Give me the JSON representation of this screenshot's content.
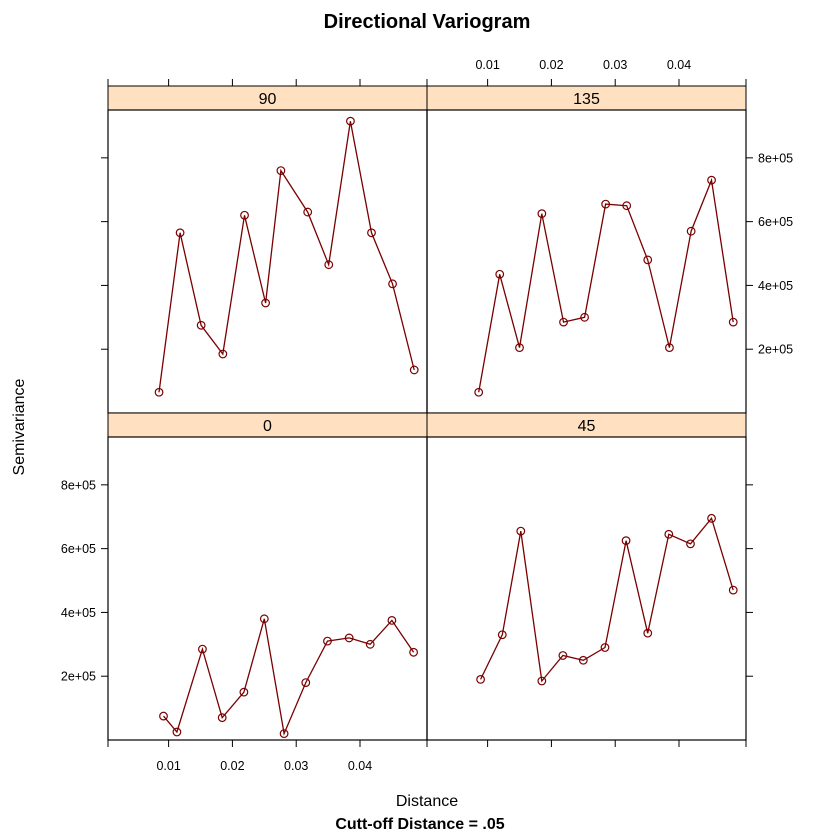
{
  "chart_data": {
    "type": "scatter",
    "title": "Directional Variogram",
    "xlabel": "Distance",
    "ylabel": "Semivariance",
    "sub": "Cutt-off Distance = .05",
    "xlim": [
      0.0005,
      0.0505
    ],
    "ylim": [
      0,
      950000
    ],
    "x_ticks": [
      0.01,
      0.02,
      0.03,
      0.04
    ],
    "x_tick_labels": [
      "0.01",
      "0.02",
      "0.03",
      "0.04"
    ],
    "y_ticks": [
      200000,
      400000,
      600000,
      800000
    ],
    "y_tick_labels": [
      "2e+05",
      "4e+05",
      "6e+05",
      "8e+05"
    ],
    "line_color": "#7a0000",
    "strip_color": "#ffe0c0",
    "panels": [
      {
        "name": "90",
        "x": [
          0.0085,
          0.0118,
          0.0151,
          0.0185,
          0.0219,
          0.0252,
          0.0276,
          0.0318,
          0.0351,
          0.0385,
          0.0418,
          0.0451,
          0.0485
        ],
        "y": [
          65000,
          565000,
          275000,
          185000,
          620000,
          345000,
          760000,
          630000,
          465000,
          915000,
          565000,
          405000,
          135000
        ]
      },
      {
        "name": "135",
        "x": [
          0.0086,
          0.0119,
          0.015,
          0.0185,
          0.0219,
          0.0252,
          0.0285,
          0.0318,
          0.0351,
          0.0385,
          0.0419,
          0.0451,
          0.0485
        ],
        "y": [
          65000,
          435000,
          205000,
          625000,
          285000,
          300000,
          655000,
          650000,
          480000,
          205000,
          570000,
          730000,
          285000
        ]
      },
      {
        "name": "0",
        "x": [
          0.0092,
          0.0113,
          0.0153,
          0.0184,
          0.0218,
          0.025,
          0.0281,
          0.0315,
          0.0349,
          0.0383,
          0.0416,
          0.045,
          0.0484
        ],
        "y": [
          75000,
          25000,
          285000,
          70000,
          150000,
          380000,
          20000,
          180000,
          310000,
          320000,
          300000,
          375000,
          275000
        ]
      },
      {
        "name": "45",
        "x": [
          0.0089,
          0.0123,
          0.0152,
          0.0185,
          0.0218,
          0.025,
          0.0284,
          0.0317,
          0.0351,
          0.0384,
          0.0418,
          0.0451,
          0.0485
        ],
        "y": [
          190000,
          330000,
          655000,
          185000,
          265000,
          250000,
          290000,
          625000,
          335000,
          645000,
          615000,
          695000,
          470000
        ]
      }
    ]
  }
}
